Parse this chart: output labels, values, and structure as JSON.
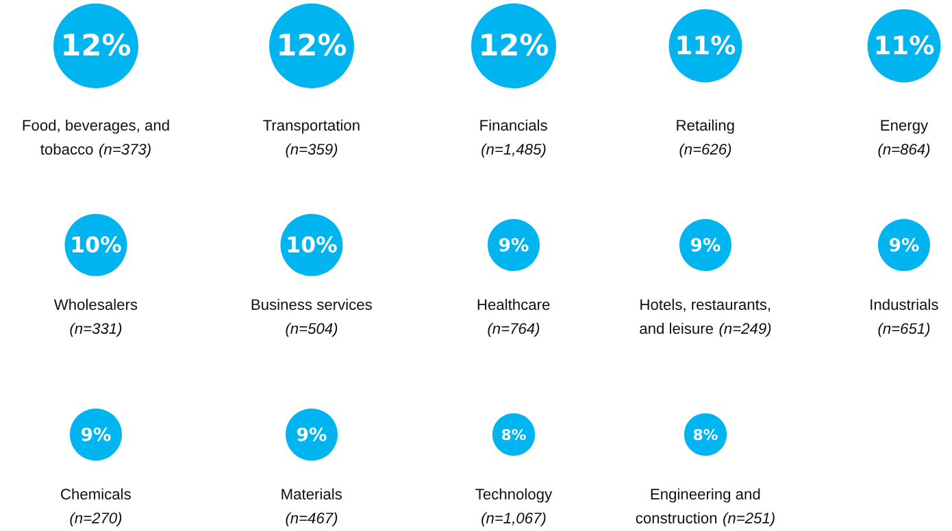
{
  "chart_data": {
    "type": "other",
    "categories": [
      "Food, beverages, and\ntobacco (n=373)",
      "Transportation\n(n=359)",
      "Financials\n(n=1,485)",
      "Retailing\n(n=626)",
      "Energy\n(n=864)",
      "Wholesalers\n(n=331)",
      "Business services\n(n=504)",
      "Healthcare\n(n=764)",
      "Hotels, restaurants,\nand leisure (n=249)",
      "Industrials\n(n=651)",
      "Chemicals\n(n=270)",
      "Materials\n(n=467)",
      "Technology\n(n=1,067)",
      "Engineering and\nconstruction (n=251)"
    ],
    "values": [
      12,
      12,
      12,
      11,
      11,
      10,
      10,
      9,
      9,
      9,
      9,
      9,
      8,
      8
    ],
    "value_labels": [
      "12%",
      "12%",
      "12%",
      "11%",
      "11%",
      "10%",
      "10%",
      "9%",
      "9%",
      "9%",
      "9%",
      "9%",
      "8%",
      "8%"
    ],
    "color": "#00b5ef"
  }
}
